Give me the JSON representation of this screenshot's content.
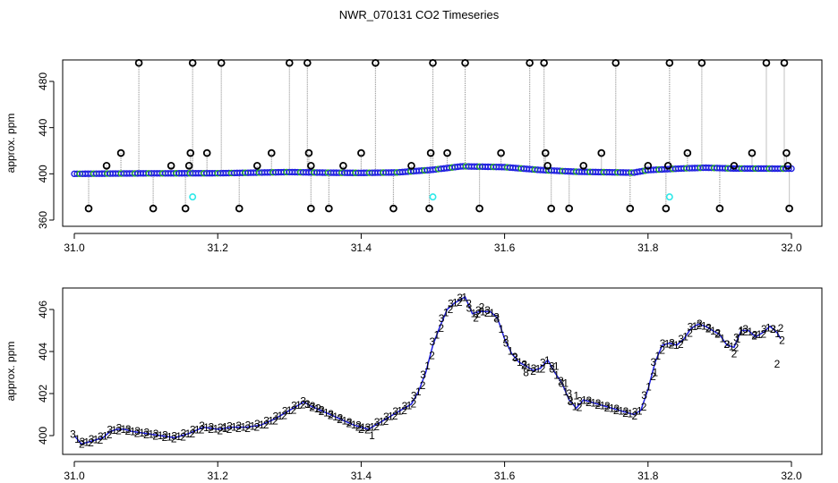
{
  "figure": {
    "title": "NWR_070131  CO2 Timeseries"
  },
  "chart_data": [
    {
      "type": "scatter",
      "title": "NWR_070131  CO2 Timeseries",
      "ylabel": "approx. ppm",
      "xlabel": "",
      "xlim": [
        31.0,
        32.0
      ],
      "ylim": [
        355,
        500
      ],
      "x_ticks": [
        "31.0",
        "31.2",
        "31.4",
        "31.6",
        "31.8",
        "32.0"
      ],
      "y_ticks": [
        "360",
        "400",
        "440",
        "480"
      ],
      "grid": false,
      "colors": {
        "main": "#1f1fe0",
        "flag": "#000000",
        "edit": "#2ee8e8",
        "secondary": "#22aa22",
        "line": "#9a9a9a"
      },
      "baseline": [
        [
          31.0,
          400.0
        ],
        [
          31.1,
          400.4
        ],
        [
          31.2,
          400.5
        ],
        [
          31.3,
          401.5
        ],
        [
          31.35,
          401.0
        ],
        [
          31.4,
          400.8
        ],
        [
          31.45,
          401.2
        ],
        [
          31.5,
          403.5
        ],
        [
          31.54,
          406.5
        ],
        [
          31.6,
          405.8
        ],
        [
          31.65,
          403.3
        ],
        [
          31.7,
          401.8
        ],
        [
          31.78,
          401.0
        ],
        [
          31.8,
          403.2
        ],
        [
          31.85,
          404.7
        ],
        [
          31.88,
          405.3
        ],
        [
          31.92,
          404.6
        ],
        [
          31.98,
          404.5
        ],
        [
          32.0,
          404.5
        ]
      ],
      "flagged_points": [
        [
          31.02,
          370
        ],
        [
          31.045,
          407
        ],
        [
          31.065,
          418
        ],
        [
          31.09,
          496
        ],
        [
          31.11,
          370
        ],
        [
          31.135,
          407
        ],
        [
          31.155,
          370
        ],
        [
          31.16,
          407
        ],
        [
          31.162,
          418
        ],
        [
          31.165,
          496
        ],
        [
          31.185,
          418
        ],
        [
          31.205,
          496
        ],
        [
          31.23,
          370
        ],
        [
          31.255,
          407
        ],
        [
          31.275,
          418
        ],
        [
          31.3,
          496
        ],
        [
          31.325,
          496
        ],
        [
          31.327,
          418
        ],
        [
          31.33,
          407
        ],
        [
          31.33,
          370
        ],
        [
          31.355,
          370
        ],
        [
          31.375,
          407
        ],
        [
          31.4,
          418
        ],
        [
          31.42,
          496
        ],
        [
          31.445,
          370
        ],
        [
          31.47,
          407
        ],
        [
          31.495,
          370
        ],
        [
          31.497,
          418
        ],
        [
          31.5,
          496
        ],
        [
          31.52,
          418
        ],
        [
          31.545,
          496
        ],
        [
          31.565,
          370
        ],
        [
          31.595,
          418
        ],
        [
          31.635,
          496
        ],
        [
          31.655,
          496
        ],
        [
          31.657,
          418
        ],
        [
          31.66,
          407
        ],
        [
          31.665,
          370
        ],
        [
          31.69,
          370
        ],
        [
          31.71,
          407
        ],
        [
          31.735,
          418
        ],
        [
          31.755,
          496
        ],
        [
          31.775,
          370
        ],
        [
          31.8,
          407
        ],
        [
          31.825,
          370
        ],
        [
          31.828,
          407
        ],
        [
          31.83,
          496
        ],
        [
          31.855,
          418
        ],
        [
          31.875,
          496
        ],
        [
          31.9,
          370
        ],
        [
          31.92,
          407
        ],
        [
          31.945,
          418
        ],
        [
          31.965,
          496
        ],
        [
          31.99,
          496
        ],
        [
          31.993,
          418
        ],
        [
          31.995,
          407
        ],
        [
          31.997,
          370
        ]
      ],
      "edited_points": [
        [
          31.165,
          380
        ],
        [
          31.5,
          380
        ],
        [
          31.83,
          380
        ]
      ]
    },
    {
      "type": "scatter",
      "title": "",
      "ylabel": "approx. ppm",
      "xlabel": "",
      "xlim": [
        31.0,
        32.0
      ],
      "ylim": [
        399.3,
        406.8
      ],
      "x_ticks": [
        "31.0",
        "31.2",
        "31.4",
        "31.6",
        "31.8",
        "32.0"
      ],
      "y_ticks": [
        "400",
        "402",
        "404",
        "406"
      ],
      "grid": false,
      "point_symbols": [
        "1",
        "2",
        "3"
      ],
      "colors": {
        "1": "#d11d1d",
        "2": "#22aa22",
        "3": "#1f1fe0",
        "line": "#1f1fe0"
      },
      "series": [
        {
          "name": "",
          "points": [
            [
              31.0,
              400.0
            ],
            [
              31.01,
              399.6
            ],
            [
              31.02,
              399.7
            ],
            [
              31.04,
              399.9
            ],
            [
              31.05,
              400.2
            ],
            [
              31.06,
              400.3
            ],
            [
              31.07,
              400.3
            ],
            [
              31.08,
              400.2
            ],
            [
              31.1,
              400.1
            ],
            [
              31.12,
              400.0
            ],
            [
              31.14,
              399.9
            ],
            [
              31.16,
              400.1
            ],
            [
              31.18,
              400.4
            ],
            [
              31.2,
              400.3
            ],
            [
              31.22,
              400.4
            ],
            [
              31.24,
              400.4
            ],
            [
              31.26,
              400.5
            ],
            [
              31.28,
              400.8
            ],
            [
              31.3,
              401.2
            ],
            [
              31.31,
              401.4
            ],
            [
              31.32,
              401.6
            ],
            [
              31.33,
              401.4
            ],
            [
              31.35,
              401.1
            ],
            [
              31.37,
              400.8
            ],
            [
              31.39,
              400.5
            ],
            [
              31.41,
              400.3
            ],
            [
              31.43,
              400.7
            ],
            [
              31.45,
              401.1
            ],
            [
              31.47,
              401.5
            ],
            [
              31.48,
              402.1
            ],
            [
              31.49,
              403.0
            ],
            [
              31.5,
              404.3
            ],
            [
              31.51,
              405.2
            ],
            [
              31.52,
              406.0
            ],
            [
              31.53,
              406.3
            ],
            [
              31.545,
              406.6
            ],
            [
              31.555,
              405.8
            ],
            [
              31.565,
              405.9
            ],
            [
              31.58,
              405.9
            ],
            [
              31.59,
              405.6
            ],
            [
              31.6,
              404.6
            ],
            [
              31.61,
              403.9
            ],
            [
              31.62,
              403.5
            ],
            [
              31.63,
              403.3
            ],
            [
              31.64,
              403.1
            ],
            [
              31.65,
              403.2
            ],
            [
              31.66,
              403.6
            ],
            [
              31.67,
              403.0
            ],
            [
              31.68,
              402.5
            ],
            [
              31.69,
              401.7
            ],
            [
              31.7,
              401.3
            ],
            [
              31.71,
              401.7
            ],
            [
              31.72,
              401.6
            ],
            [
              31.73,
              401.5
            ],
            [
              31.74,
              401.4
            ],
            [
              31.76,
              401.2
            ],
            [
              31.78,
              401.0
            ],
            [
              31.79,
              401.2
            ],
            [
              31.8,
              402.2
            ],
            [
              31.81,
              403.5
            ],
            [
              31.82,
              404.3
            ],
            [
              31.83,
              404.4
            ],
            [
              31.84,
              404.3
            ],
            [
              31.85,
              404.6
            ],
            [
              31.86,
              405.1
            ],
            [
              31.87,
              405.3
            ],
            [
              31.88,
              405.2
            ],
            [
              31.89,
              405.0
            ],
            [
              31.9,
              404.8
            ],
            [
              31.91,
              404.3
            ],
            [
              31.92,
              404.2
            ],
            [
              31.93,
              405.0
            ],
            [
              31.94,
              405.0
            ],
            [
              31.95,
              404.7
            ],
            [
              31.96,
              404.9
            ],
            [
              31.97,
              405.2
            ],
            [
              31.98,
              404.9
            ],
            [
              31.985,
              404.6
            ]
          ]
        }
      ],
      "annotations": [
        {
          "x": 31.325,
          "y": 401.5,
          "label": "3",
          "color": "3"
        },
        {
          "x": 31.34,
          "y": 401.3,
          "label": "2",
          "color": "2"
        },
        {
          "x": 31.21,
          "y": 400.4,
          "label": "1",
          "color": "1"
        },
        {
          "x": 31.4,
          "y": 400.3,
          "label": "2",
          "color": "2"
        },
        {
          "x": 31.415,
          "y": 400.0,
          "label": "1",
          "color": "1"
        },
        {
          "x": 31.56,
          "y": 405.6,
          "label": "2",
          "color": "2"
        },
        {
          "x": 31.568,
          "y": 406.1,
          "label": "2",
          "color": "2"
        },
        {
          "x": 31.63,
          "y": 403.0,
          "label": "8",
          "color": "3"
        },
        {
          "x": 31.672,
          "y": 403.3,
          "label": "1",
          "color": "1"
        },
        {
          "x": 31.685,
          "y": 402.5,
          "label": "1",
          "color": "1"
        },
        {
          "x": 31.69,
          "y": 402.0,
          "label": "3",
          "color": "3"
        },
        {
          "x": 31.7,
          "y": 401.9,
          "label": "1",
          "color": "1"
        },
        {
          "x": 31.81,
          "y": 403.0,
          "label": "1",
          "color": "1"
        },
        {
          "x": 31.92,
          "y": 403.9,
          "label": "2",
          "color": "2"
        },
        {
          "x": 31.925,
          "y": 404.6,
          "label": "1",
          "color": "1"
        },
        {
          "x": 31.93,
          "y": 405.0,
          "label": "1",
          "color": "1"
        },
        {
          "x": 31.98,
          "y": 403.4,
          "label": "2",
          "color": "2"
        },
        {
          "x": 31.985,
          "y": 405.1,
          "label": "2",
          "color": "2"
        }
      ]
    }
  ]
}
